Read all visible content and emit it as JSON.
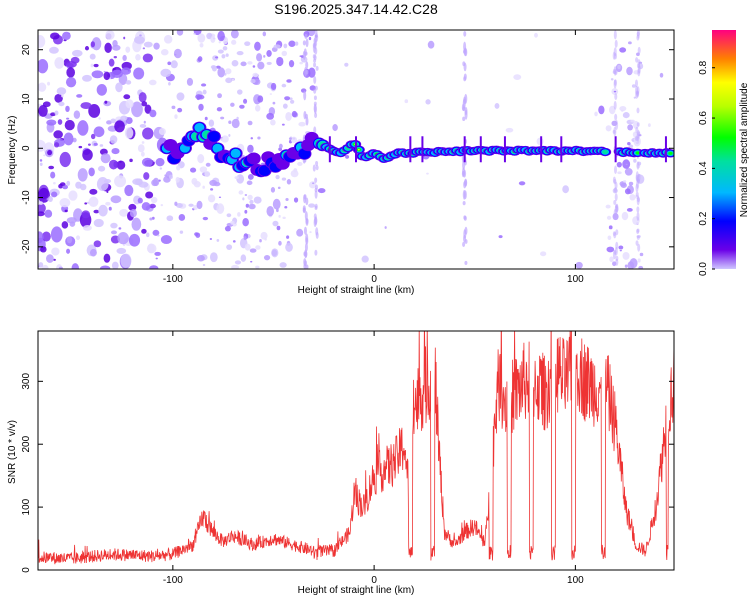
{
  "title": "S196.2025.347.14.42.C28",
  "chart_data": [
    {
      "type": "heatmap",
      "title": "S196.2025.347.14.42.C28",
      "xlabel": "Height of straight line (km)",
      "ylabel": "Frequency (Hz)",
      "xlim": [
        -167,
        149
      ],
      "ylim": [
        -24.5,
        24
      ],
      "xticks": [
        -100,
        0,
        100
      ],
      "yticks": [
        -20,
        -10,
        0,
        10,
        20
      ],
      "colorbar": {
        "label": "Normalized spectral amplitude",
        "range": [
          0,
          0.95
        ],
        "ticks": [
          "0.0",
          "0.2",
          "0.4",
          "0.6",
          "0.8"
        ],
        "colormap": "rainbow"
      },
      "ridge_frequency_hz": [
        {
          "x": -100,
          "y": -1
        },
        {
          "x": -88,
          "y": 4
        },
        {
          "x": -75,
          "y": -1
        },
        {
          "x": -55,
          "y": -3
        },
        {
          "x": -27,
          "y": 1
        },
        {
          "x": -17,
          "y": -1
        },
        {
          "x": -10,
          "y": 1
        },
        {
          "x": -5,
          "y": -2
        },
        {
          "x": 0,
          "y": -1
        },
        {
          "x": 5,
          "y": -2
        },
        {
          "x": 12,
          "y": -1
        },
        {
          "x": 50,
          "y": -0.5
        },
        {
          "x": 100,
          "y": -0.5
        },
        {
          "x": 147,
          "y": -1
        }
      ],
      "noise_regions_km": [
        [
          -167,
          -95
        ],
        [
          -90,
          -30
        ],
        [
          116,
          133
        ]
      ]
    },
    {
      "type": "line",
      "xlabel": "Height of straight line (km)",
      "ylabel": "SNR (10 * v/v)",
      "xlim": [
        -167,
        149
      ],
      "ylim": [
        0,
        380
      ],
      "xticks": [
        -100,
        0,
        100
      ],
      "yticks": [
        0,
        100,
        200,
        300
      ],
      "color": "#ee3333",
      "series": [
        {
          "name": "SNR",
          "x": [
            -167,
            -150,
            -130,
            -110,
            -100,
            -90,
            -85,
            -80,
            -75,
            -70,
            -60,
            -50,
            -40,
            -30,
            -20,
            -12,
            -10,
            -5,
            0,
            5,
            10,
            15,
            17,
            20,
            25,
            28,
            30,
            32,
            35,
            40,
            45,
            50,
            55,
            58,
            60,
            62,
            65,
            70,
            75,
            80,
            85,
            90,
            95,
            100,
            105,
            110,
            115,
            120,
            125,
            130,
            135,
            140,
            145,
            147,
            149
          ],
          "y": [
            20,
            18,
            25,
            22,
            25,
            40,
            85,
            60,
            45,
            55,
            40,
            50,
            40,
            30,
            30,
            60,
            120,
            100,
            150,
            160,
            170,
            200,
            140,
            260,
            290,
            300,
            330,
            200,
            60,
            40,
            60,
            70,
            40,
            140,
            240,
            300,
            270,
            280,
            300,
            300,
            280,
            320,
            300,
            330,
            300,
            290,
            300,
            230,
            100,
            40,
            30,
            100,
            230,
            270,
            300
          ]
        }
      ]
    }
  ]
}
